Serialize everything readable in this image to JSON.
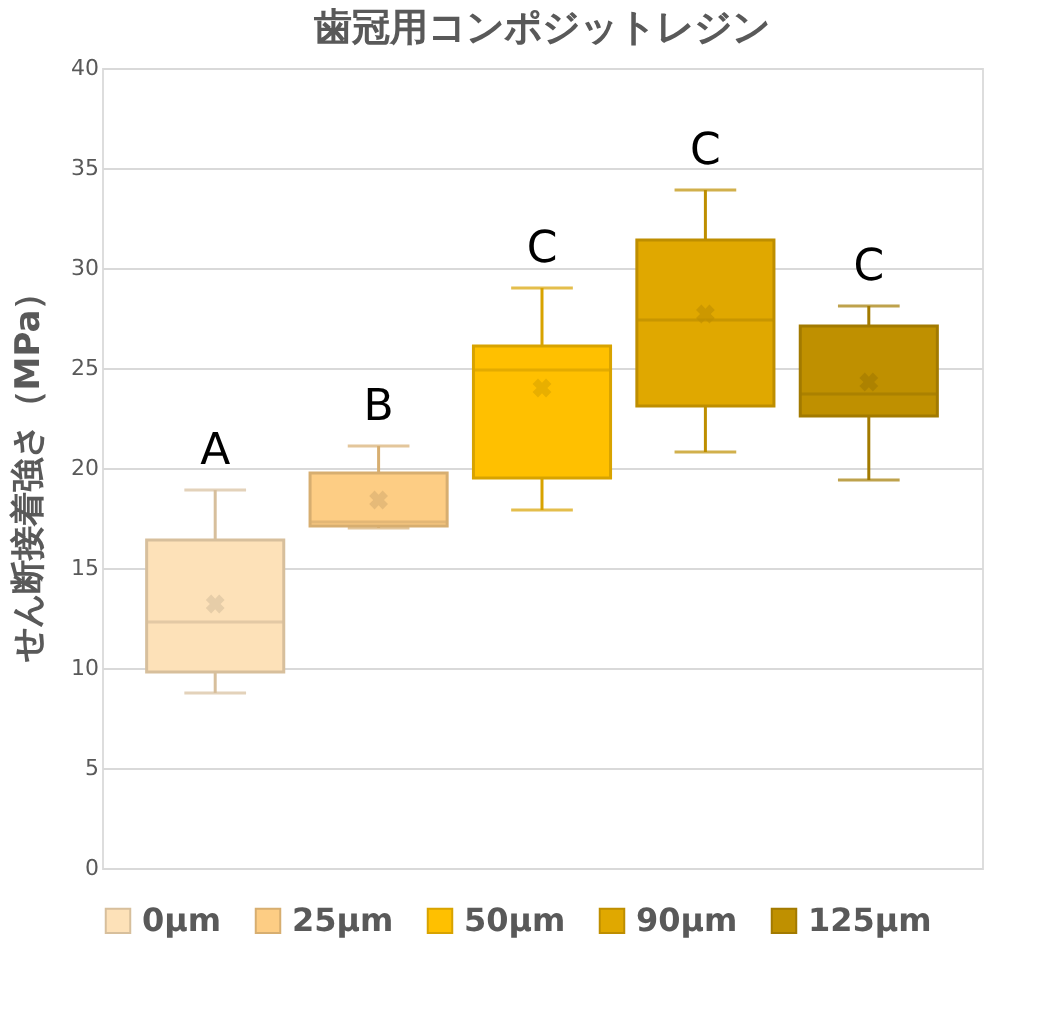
{
  "chart_data": {
    "type": "box",
    "title": "歯冠用コンポジットレジン",
    "ylabel": "せん断接着強さ（MPa）",
    "categories": [
      null
    ],
    "series": [
      {
        "name": "0μm",
        "color": "#fde1b8",
        "boxes": [
          {
            "low": 8.75,
            "q1": 9.8,
            "median": 12.3,
            "q3": 16.4,
            "high": 18.9,
            "mean": 13.2
          }
        ]
      },
      {
        "name": "25μm",
        "color": "#fdcd84",
        "boxes": [
          {
            "low": 17.0,
            "q1": 17.1,
            "median": 17.3,
            "q3": 19.75,
            "high": 21.1,
            "mean": 18.4
          }
        ]
      },
      {
        "name": "50μm",
        "color": "#ffc000",
        "boxes": [
          {
            "low": 17.9,
            "q1": 19.5,
            "median": 24.9,
            "q3": 26.1,
            "high": 29.0,
            "mean": 24.0
          }
        ]
      },
      {
        "name": "90μm",
        "color": "#e0a800",
        "boxes": [
          {
            "low": 20.8,
            "q1": 23.1,
            "median": 27.4,
            "q3": 31.4,
            "high": 33.9,
            "mean": 27.7
          }
        ]
      },
      {
        "name": "125μm",
        "color": "#bf9000",
        "boxes": [
          {
            "low": 19.4,
            "q1": 22.6,
            "median": 23.7,
            "q3": 27.1,
            "high": 28.1,
            "mean": 24.3
          }
        ]
      }
    ],
    "annotations": [
      "A",
      "B",
      "C",
      "C",
      "C"
    ],
    "ylim": [
      0,
      40
    ],
    "yticks": [
      0,
      5,
      10,
      15,
      20,
      25,
      30,
      35,
      40
    ],
    "grid": "y",
    "legend": "bottom"
  }
}
